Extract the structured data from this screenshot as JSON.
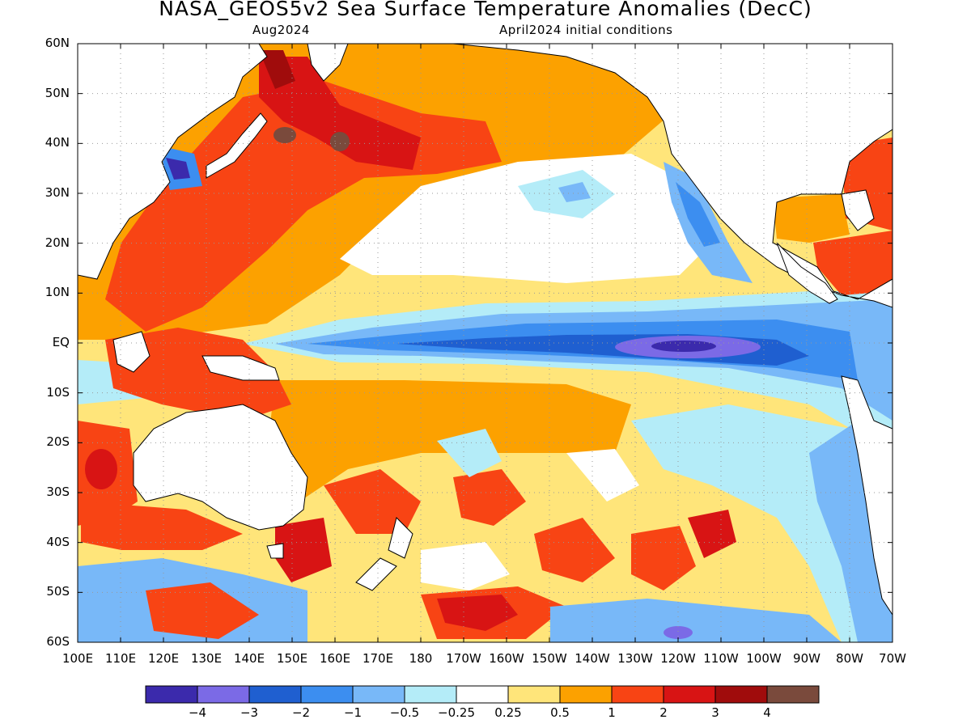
{
  "title": "NASA_GEOS5v2 Sea Surface Temperature Anomalies (DecC)",
  "subtitle_left": "Aug2024",
  "subtitle_right": "April2024 initial conditions",
  "lat_labels": [
    "60N",
    "50N",
    "40N",
    "30N",
    "20N",
    "10N",
    "EQ",
    "10S",
    "20S",
    "30S",
    "40S",
    "50S",
    "60S"
  ],
  "lon_labels": [
    "100E",
    "110E",
    "120E",
    "130E",
    "140E",
    "150E",
    "160E",
    "170E",
    "180",
    "170W",
    "160W",
    "150W",
    "140W",
    "130W",
    "120W",
    "110W",
    "100W",
    "90W",
    "80W",
    "70W"
  ],
  "colorbar": {
    "labels": [
      "−4",
      "−3",
      "−2",
      "−1",
      "−0.5",
      "−0.25",
      "0.25",
      "0.5",
      "1",
      "2",
      "3",
      "4"
    ],
    "colors": [
      "#3b2aac",
      "#7b6ae6",
      "#1f5fd0",
      "#3c8ef0",
      "#78b8f8",
      "#b4ecf8",
      "#ffffff",
      "#ffe57a",
      "#fca100",
      "#f84414",
      "#d81414",
      "#a00c0c",
      "#7a4a3c"
    ]
  },
  "land_color": "#ffffff",
  "grid_color": "#999999"
}
